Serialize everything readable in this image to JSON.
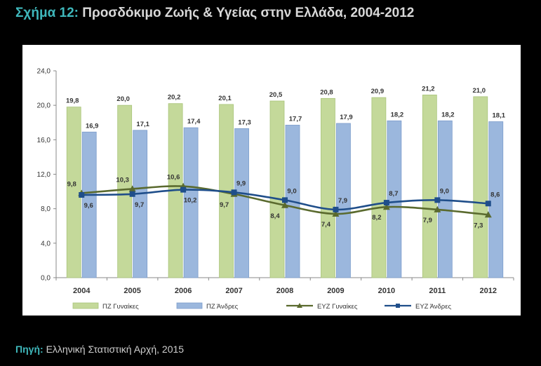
{
  "title": {
    "prefix": "Σχήμα 12:",
    "text": "Προσδόκιμο Ζωής & Υγείας στην Ελλάδα, 2004-2012"
  },
  "source": {
    "prefix": "Πηγή:",
    "text": "Ελληνική Στατιστική Αρχή, 2015"
  },
  "chart_data": {
    "type": "bar",
    "title": "",
    "xlabel": "",
    "ylabel": "",
    "ylim": [
      0,
      24
    ],
    "yticks": [
      "0,0",
      "4,0",
      "8,0",
      "12,0",
      "16,0",
      "20,0",
      "24,0"
    ],
    "grid": false,
    "legend_position": "bottom",
    "categories": [
      "2004",
      "2005",
      "2006",
      "2007",
      "2008",
      "2009",
      "2010",
      "2011",
      "2012"
    ],
    "series": [
      {
        "name": "ΠΖ Γυναίκες",
        "kind": "bar",
        "color": "#c4d99a",
        "values": [
          19.8,
          20.0,
          20.2,
          20.1,
          20.5,
          20.8,
          20.9,
          21.2,
          21.0
        ],
        "labels": [
          "19,8",
          "20,0",
          "20,2",
          "20,1",
          "20,5",
          "20,8",
          "20,9",
          "21,2",
          "21,0"
        ]
      },
      {
        "name": "ΠΖ Άνδρες",
        "kind": "bar",
        "color": "#9bb7dd",
        "values": [
          16.9,
          17.1,
          17.4,
          17.3,
          17.7,
          17.9,
          18.2,
          18.2,
          18.1
        ],
        "labels": [
          "16,9",
          "17,1",
          "17,4",
          "17,3",
          "17,7",
          "17,9",
          "18,2",
          "18,2",
          "18,1"
        ]
      },
      {
        "name": "ΕΥΖ Γυναίκες",
        "kind": "line",
        "marker": "triangle",
        "color": "#5a6a2e",
        "values": [
          9.8,
          10.3,
          10.6,
          9.7,
          8.4,
          7.4,
          8.2,
          7.9,
          7.3
        ],
        "labels": [
          "9,8",
          "10,3",
          "10,6",
          "9,7",
          "8,4",
          "7,4",
          "8,2",
          "7,9",
          "7,3"
        ]
      },
      {
        "name": "ΕΥΖ Άνδρες",
        "kind": "line",
        "marker": "square",
        "color": "#1f4e8a",
        "values": [
          9.6,
          9.7,
          10.2,
          9.9,
          9.0,
          7.9,
          8.7,
          9.0,
          8.6
        ],
        "labels": [
          "9,6",
          "9,7",
          "10,2",
          "9,9",
          "9,0",
          "7,9",
          "8,7",
          "9,0",
          "8,6"
        ]
      }
    ]
  }
}
